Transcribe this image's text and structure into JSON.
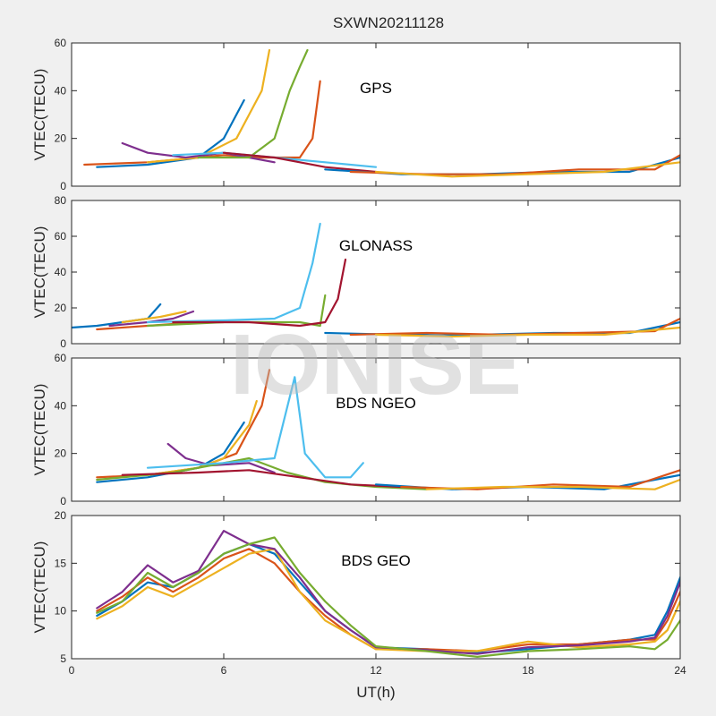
{
  "title": "SXWN20211128",
  "watermark": "IONISE",
  "colors": [
    "#0072BD",
    "#D95319",
    "#EDB120",
    "#7E2F8E",
    "#77AC30",
    "#4DBEEE",
    "#A2142F"
  ],
  "chart_data": [
    {
      "type": "line",
      "panel_label": "GPS",
      "ylabel": "VTEC(TECU)",
      "xlabel": "",
      "xlim": [
        0,
        24
      ],
      "ylim": [
        0,
        60
      ],
      "xticks": [
        0,
        6,
        12,
        18,
        24
      ],
      "yticks": [
        0,
        20,
        40,
        60
      ],
      "series": [
        {
          "x": [
            1,
            3,
            5,
            6,
            6.8
          ],
          "y": [
            8,
            9,
            12,
            20,
            36
          ]
        },
        {
          "x": [
            0.5,
            3,
            5,
            6,
            7.5,
            9,
            9.5,
            9.8
          ],
          "y": [
            9,
            10,
            12,
            13,
            12,
            12,
            20,
            44
          ]
        },
        {
          "x": [
            3,
            5,
            6.5,
            7.5,
            7.8
          ],
          "y": [
            10,
            12,
            20,
            40,
            57
          ]
        },
        {
          "x": [
            2,
            3,
            4.5,
            6,
            7,
            8
          ],
          "y": [
            18,
            14,
            12,
            14,
            12,
            10
          ]
        },
        {
          "x": [
            5,
            7,
            8,
            8.6,
            9,
            9.3
          ],
          "y": [
            12,
            12,
            20,
            40,
            50,
            57
          ]
        },
        {
          "x": [
            4,
            6,
            8,
            10,
            12
          ],
          "y": [
            13,
            14,
            12,
            10,
            8
          ]
        },
        {
          "x": [
            6,
            8,
            9,
            10,
            12
          ],
          "y": [
            14,
            12,
            10,
            8,
            6
          ]
        },
        {
          "x": [
            10,
            13,
            16,
            19,
            22,
            24
          ],
          "y": [
            7,
            5,
            5,
            6,
            6,
            12
          ]
        },
        {
          "x": [
            11,
            14,
            17,
            20,
            23,
            24
          ],
          "y": [
            6,
            5,
            5,
            7,
            7,
            13
          ]
        },
        {
          "x": [
            12,
            15,
            18,
            21,
            24
          ],
          "y": [
            6,
            4,
            5,
            6,
            10
          ]
        }
      ]
    },
    {
      "type": "line",
      "panel_label": "GLONASS",
      "ylabel": "VTEC(TECU)",
      "xlabel": "",
      "xlim": [
        0,
        24
      ],
      "ylim": [
        0,
        80
      ],
      "xticks": [
        0,
        6,
        12,
        18,
        24
      ],
      "yticks": [
        0,
        20,
        40,
        60,
        80
      ],
      "series": [
        {
          "x": [
            0,
            1,
            2,
            3,
            3.5
          ],
          "y": [
            9,
            10,
            12,
            14,
            22
          ]
        },
        {
          "x": [
            1,
            3,
            5,
            6
          ],
          "y": [
            8,
            10,
            12,
            12
          ]
        },
        {
          "x": [
            2,
            3.5,
            4.5
          ],
          "y": [
            12,
            15,
            18
          ]
        },
        {
          "x": [
            1.5,
            3,
            4,
            4.8
          ],
          "y": [
            10,
            12,
            14,
            18
          ]
        },
        {
          "x": [
            3,
            6,
            9,
            9.8,
            10
          ],
          "y": [
            10,
            12,
            12,
            10,
            27
          ]
        },
        {
          "x": [
            3,
            6,
            8,
            9,
            9.5,
            9.8
          ],
          "y": [
            12,
            13,
            14,
            20,
            45,
            67
          ]
        },
        {
          "x": [
            4,
            7,
            9,
            10,
            10.5,
            10.8
          ],
          "y": [
            12,
            12,
            10,
            12,
            25,
            47
          ]
        },
        {
          "x": [
            10,
            13,
            16,
            19,
            22,
            24
          ],
          "y": [
            6,
            5,
            5,
            6,
            6,
            12
          ]
        },
        {
          "x": [
            11,
            14,
            17,
            20,
            23,
            24
          ],
          "y": [
            5,
            6,
            5,
            6,
            7,
            14
          ]
        },
        {
          "x": [
            12,
            15,
            18,
            21,
            24
          ],
          "y": [
            5,
            4,
            5,
            5,
            9
          ]
        }
      ]
    },
    {
      "type": "line",
      "panel_label": "BDS NGEO",
      "ylabel": "VTEC(TECU)",
      "xlabel": "",
      "xlim": [
        0,
        24
      ],
      "ylim": [
        0,
        60
      ],
      "xticks": [
        0,
        6,
        12,
        18,
        24
      ],
      "yticks": [
        0,
        20,
        40,
        60
      ],
      "series": [
        {
          "x": [
            1,
            3,
            5,
            6,
            6.8
          ],
          "y": [
            8,
            10,
            14,
            20,
            33
          ]
        },
        {
          "x": [
            1,
            3,
            5,
            6.5,
            7.5,
            7.8
          ],
          "y": [
            10,
            11,
            14,
            20,
            40,
            55
          ]
        },
        {
          "x": [
            3,
            5,
            6,
            7,
            7.3
          ],
          "y": [
            11,
            14,
            18,
            32,
            42
          ]
        },
        {
          "x": [
            3.8,
            4.5,
            5.5,
            7,
            8
          ],
          "y": [
            24,
            18,
            15,
            16,
            12
          ]
        },
        {
          "x": [
            1,
            4,
            7,
            8.5,
            10,
            12,
            14
          ],
          "y": [
            9,
            12,
            18,
            12,
            8,
            6,
            5
          ]
        },
        {
          "x": [
            3,
            6,
            8,
            8.8,
            9.2,
            10,
            11,
            11.5
          ],
          "y": [
            14,
            16,
            18,
            52,
            20,
            10,
            10,
            16
          ]
        },
        {
          "x": [
            2,
            5,
            7,
            9,
            11,
            13
          ],
          "y": [
            11,
            12,
            13,
            10,
            7,
            6
          ]
        },
        {
          "x": [
            12,
            15,
            18,
            21,
            24
          ],
          "y": [
            7,
            5,
            6,
            5,
            11
          ]
        },
        {
          "x": [
            13,
            16,
            19,
            22,
            24
          ],
          "y": [
            6,
            5,
            7,
            6,
            13
          ]
        },
        {
          "x": [
            14,
            17,
            20,
            23,
            24
          ],
          "y": [
            5,
            6,
            6,
            5,
            9
          ]
        }
      ]
    },
    {
      "type": "line",
      "panel_label": "BDS GEO",
      "ylabel": "VTEC(TECU)",
      "xlabel": "UT(h)",
      "xlim": [
        0,
        24
      ],
      "ylim": [
        5,
        20
      ],
      "xticks": [
        0,
        6,
        12,
        18,
        24
      ],
      "xticklabels": [
        "0",
        "6",
        "12",
        "18",
        "24"
      ],
      "yticks": [
        5,
        10,
        15,
        20
      ],
      "series": [
        {
          "x": [
            1,
            2,
            3,
            4,
            5,
            6,
            7,
            8,
            9,
            10,
            11,
            12,
            14,
            16,
            18,
            20,
            22,
            23,
            23.5,
            24
          ],
          "y": [
            9.5,
            11,
            13,
            12.5,
            14,
            16,
            17,
            16,
            13,
            10,
            8,
            6.2,
            6,
            5.6,
            6,
            6.5,
            7,
            7.5,
            10,
            13.5
          ]
        },
        {
          "x": [
            1,
            2,
            3,
            4,
            5,
            6,
            7,
            8,
            9,
            10,
            11,
            12,
            14,
            16,
            18,
            20,
            22,
            23,
            23.5,
            24
          ],
          "y": [
            10,
            11.5,
            13.5,
            12,
            13.5,
            15.5,
            16.5,
            15,
            12,
            9.5,
            7.5,
            6,
            6,
            5.8,
            6.5,
            6.5,
            7,
            7,
            9,
            12
          ]
        },
        {
          "x": [
            1,
            2,
            3,
            4,
            5,
            6,
            7,
            8,
            9,
            10,
            11,
            12,
            14,
            16,
            18,
            20,
            22,
            23,
            23.5,
            24
          ],
          "y": [
            9.2,
            10.5,
            12.5,
            11.5,
            13,
            14.5,
            16,
            16.5,
            12,
            9,
            7.5,
            6,
            5.8,
            5.8,
            6.8,
            6.2,
            6.5,
            6.8,
            8,
            11
          ]
        },
        {
          "x": [
            1,
            2,
            3,
            4,
            5,
            6,
            7,
            8,
            9,
            10,
            11,
            12,
            14,
            16,
            18,
            20,
            22,
            23,
            23.5,
            24
          ],
          "y": [
            10.3,
            12,
            14.8,
            13,
            14.2,
            18.4,
            17,
            16.5,
            13.5,
            10,
            8,
            6.2,
            5.9,
            5.5,
            6.2,
            6.4,
            6.8,
            7.2,
            9.5,
            13
          ]
        },
        {
          "x": [
            1,
            2,
            3,
            4,
            5,
            6,
            7,
            8,
            9,
            10,
            11,
            12,
            14,
            16,
            18,
            20,
            22,
            23,
            23.5,
            24
          ],
          "y": [
            9.8,
            11,
            14,
            12.5,
            14,
            16,
            17,
            17.7,
            14,
            11,
            8.5,
            6.3,
            5.8,
            5.2,
            5.8,
            6,
            6.3,
            6,
            7,
            9
          ]
        }
      ]
    }
  ]
}
